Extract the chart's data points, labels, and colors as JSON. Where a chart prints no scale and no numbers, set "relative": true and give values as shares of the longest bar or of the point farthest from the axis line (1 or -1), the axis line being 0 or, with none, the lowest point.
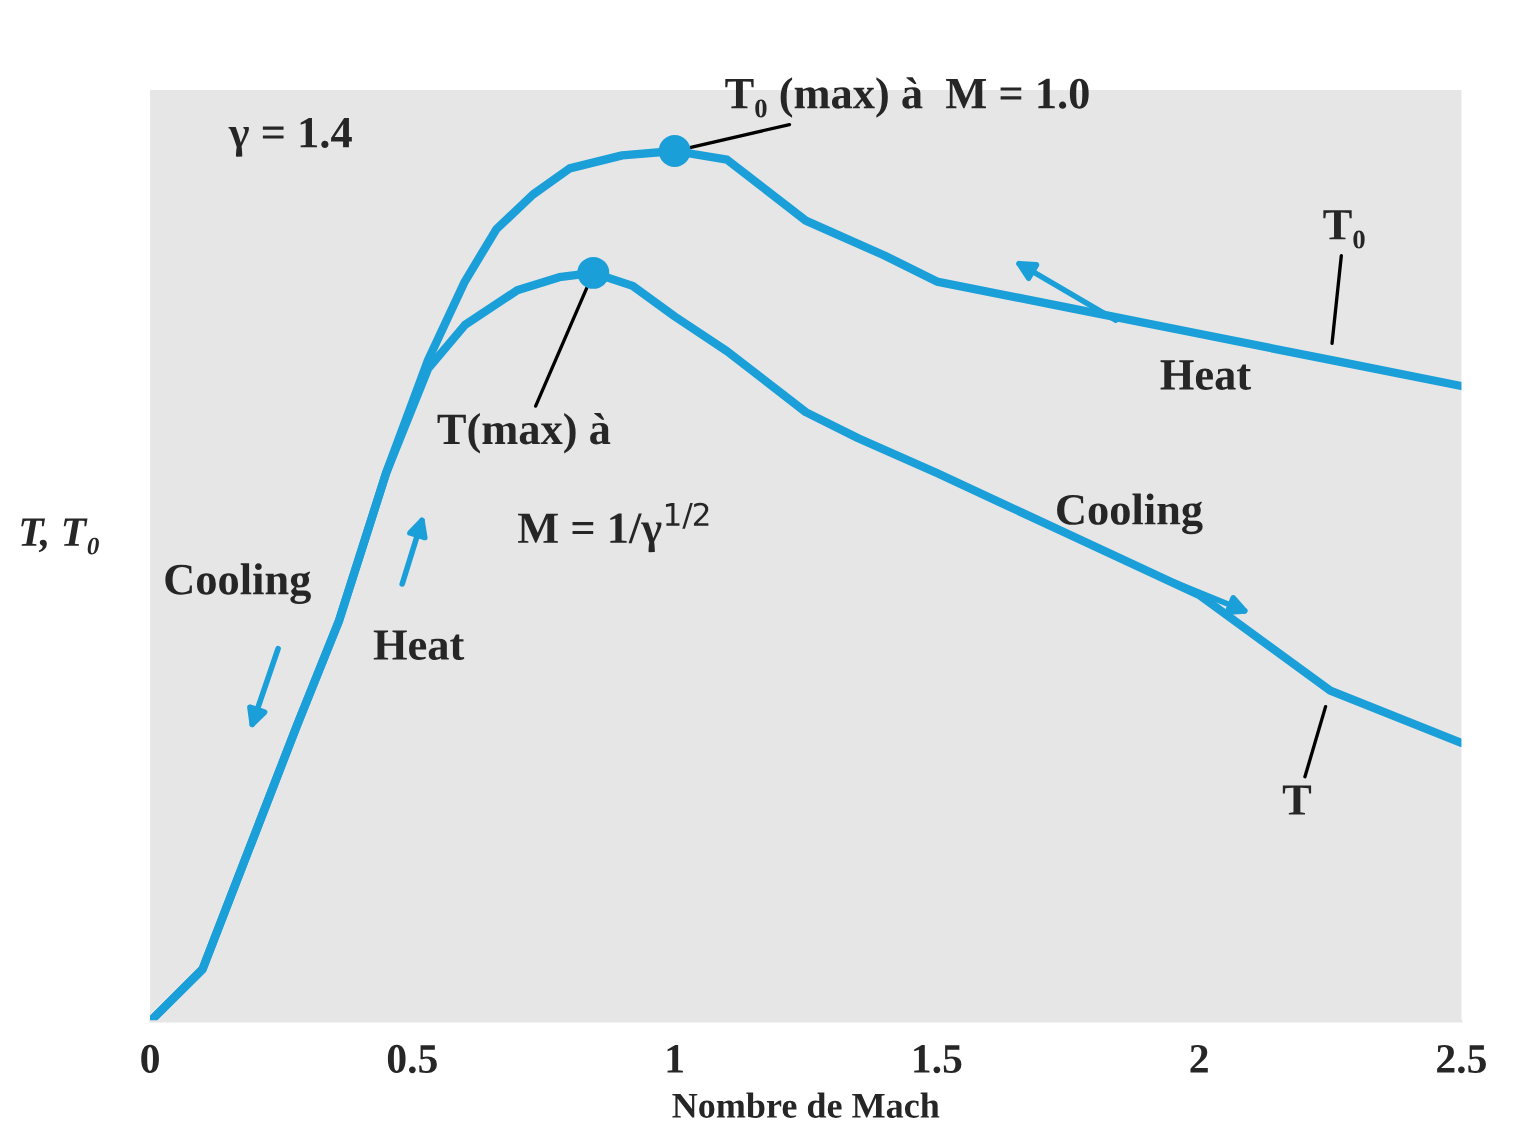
{
  "chart_data": {
    "type": "line",
    "relative": true,
    "xlabel": "Nombre de Mach",
    "ylabel": "T, T₀",
    "xlim": [
      0,
      2.5
    ],
    "xticks": [
      0,
      0.5,
      1,
      1.5,
      2,
      2.5
    ],
    "grid": false,
    "legend": false,
    "series": [
      {
        "color": "#1a9fd9",
        "x": [
          0,
          0.1,
          0.19,
          0.28,
          0.36,
          0.45,
          0.53,
          0.6,
          0.66,
          0.73,
          0.8,
          0.9,
          1.0,
          1.1,
          1.25,
          1.4,
          1.5,
          1.75,
          2.0,
          2.25,
          2.5
        ],
        "values": [
          0,
          0.06,
          0.2,
          0.34,
          0.46,
          0.63,
          0.76,
          0.85,
          0.91,
          0.95,
          0.98,
          0.995,
          1,
          0.99,
          0.92,
          0.88,
          0.85,
          0.82,
          0.79,
          0.76,
          0.73
        ]
      },
      {
        "color": "#1a9fd9",
        "x": [
          0,
          0.1,
          0.19,
          0.28,
          0.36,
          0.45,
          0.53,
          0.6,
          0.7,
          0.78,
          0.845,
          0.92,
          1.0,
          1.1,
          1.25,
          1.35,
          1.5,
          1.75,
          2.0,
          2.25,
          2.5
        ],
        "values": [
          0,
          0.06,
          0.2,
          0.34,
          0.46,
          0.63,
          0.75,
          0.8,
          0.84,
          0.855,
          0.86,
          0.845,
          0.81,
          0.77,
          0.7,
          0.67,
          0.63,
          0.56,
          0.49,
          0.38,
          0.32
        ]
      },
      {
        "type": "scatter",
        "color": "#1a9fd9",
        "marker": "circle",
        "x": [
          0.845,
          1.0
        ],
        "values": [
          0.86,
          1
        ]
      }
    ],
    "annotations": [
      "γ = 1.4",
      {
        "text": "T₀ (max) à  M = 1.0",
        "x": 1.0,
        "y": 1
      },
      {
        "text": "T(max) à",
        "x": 0.845,
        "y": 0.86
      },
      "M = 1/γ$^{1/2}$",
      {
        "text": "T₀",
        "x": 2.25,
        "y": 0.76
      },
      {
        "text": "T",
        "x": 2.25,
        "y": 0.38
      },
      "Heat",
      "Cooling",
      "Cooling",
      "Heat"
    ]
  }
}
